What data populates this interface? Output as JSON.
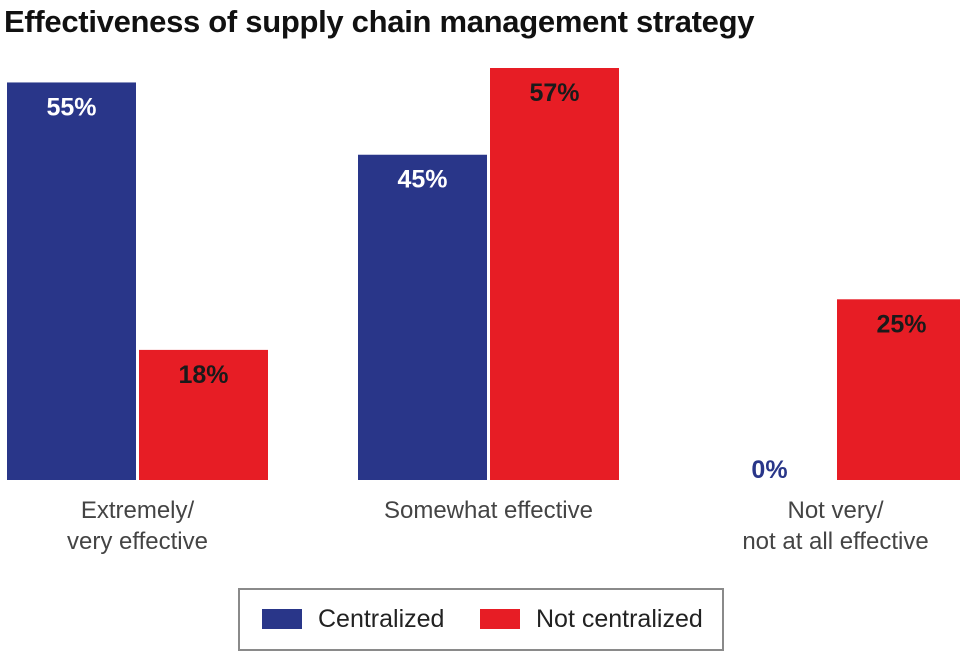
{
  "title": "Effectiveness of supply chain management strategy",
  "colors": {
    "centralized": "#293689",
    "not_centralized": "#e71d25",
    "label_dark": "#1a1a1a",
    "category_text": "#444444",
    "legend_border": "#8a8a8a"
  },
  "legend": {
    "items": [
      {
        "label": "Centralized",
        "color": "#293689"
      },
      {
        "label": "Not centralized",
        "color": "#e71d25"
      }
    ]
  },
  "chart_data": {
    "type": "bar",
    "title": "Effectiveness of supply chain management strategy",
    "xlabel": "",
    "ylabel": "",
    "ylim": [
      0,
      60
    ],
    "grid": false,
    "legend_position": "bottom",
    "categories": [
      [
        "Extremely/",
        "very effective"
      ],
      [
        "Somewhat effective"
      ],
      [
        "Not very/",
        "not at all effective"
      ]
    ],
    "series": [
      {
        "name": "Centralized",
        "color": "#293689",
        "values": [
          55,
          45,
          0
        ],
        "labels": [
          "55%",
          "45%",
          "0%"
        ]
      },
      {
        "name": "Not centralized",
        "color": "#e71d25",
        "values": [
          18,
          57,
          25
        ],
        "labels": [
          "18%",
          "57%",
          "25%"
        ]
      }
    ]
  }
}
